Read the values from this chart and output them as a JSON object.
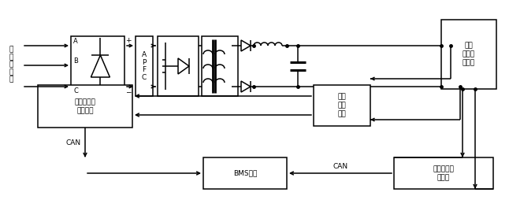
{
  "fig_w": 6.46,
  "fig_h": 2.68,
  "dpi": 100,
  "bg": "#ffffff",
  "lc": "#000000",
  "lw": 1.1,
  "fs": 6.5,
  "ac_text": "三相交流电",
  "A": "A",
  "B": "B",
  "C": "C",
  "plus": "+",
  "minus": "−",
  "apfc": "A\nP\nF\nC",
  "bat_text": "动力\n锂离子\n电池组",
  "det_text": "电流\n电压\n检测",
  "chg_text": "充电机智能\n监测系统",
  "bms_text": "BMS系统",
  "cell_text": "电池单体电\n压检测",
  "can": "CAN"
}
